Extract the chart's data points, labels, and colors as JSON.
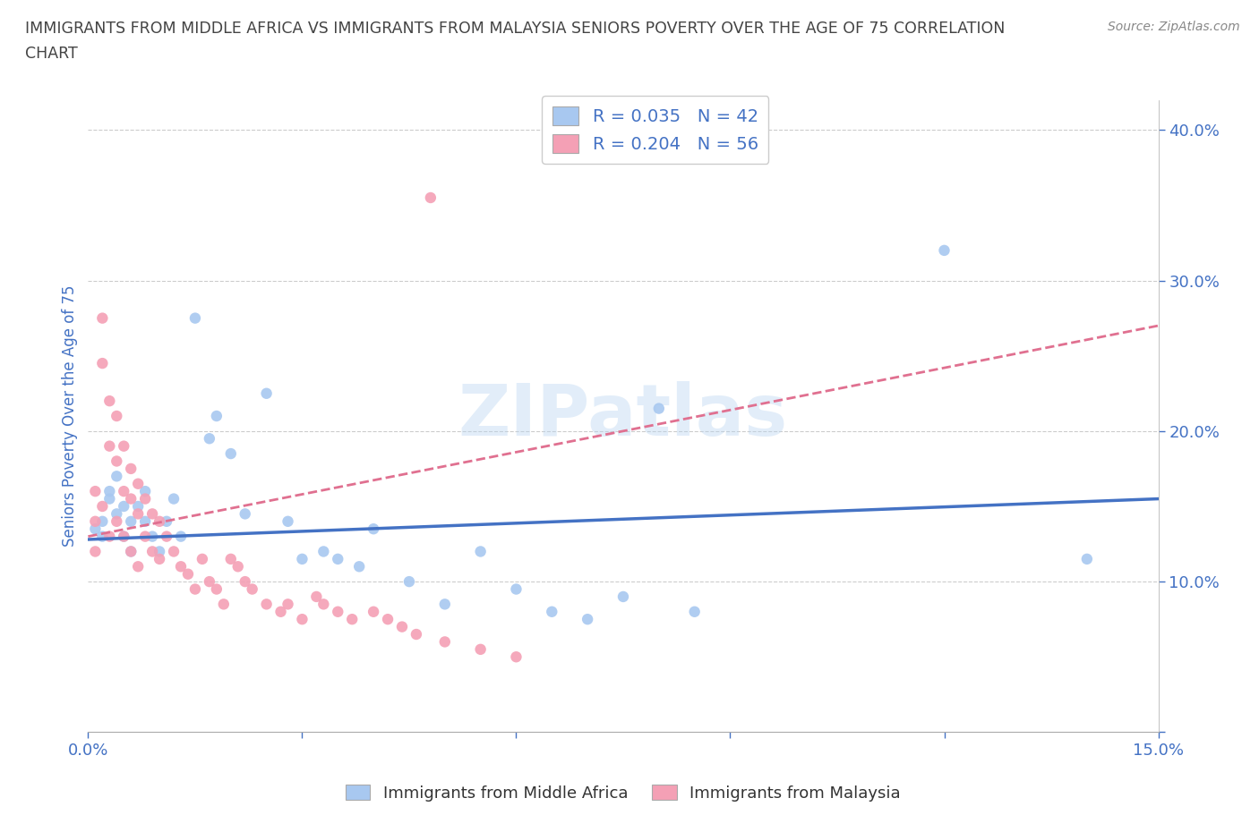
{
  "title_line1": "IMMIGRANTS FROM MIDDLE AFRICA VS IMMIGRANTS FROM MALAYSIA SENIORS POVERTY OVER THE AGE OF 75 CORRELATION",
  "title_line2": "CHART",
  "source": "Source: ZipAtlas.com",
  "ylabel": "Seniors Poverty Over the Age of 75",
  "xlim": [
    0.0,
    0.15
  ],
  "ylim": [
    0.0,
    0.42
  ],
  "legend_labels": [
    "Immigrants from Middle Africa",
    "Immigrants from Malaysia"
  ],
  "blue_scatter_color": "#a8c8f0",
  "pink_scatter_color": "#f4a0b5",
  "blue_line_color": "#4472c4",
  "pink_line_color": "#e07090",
  "watermark": "ZIPatlas",
  "blue_x": [
    0.001,
    0.002,
    0.002,
    0.003,
    0.003,
    0.004,
    0.004,
    0.005,
    0.005,
    0.006,
    0.006,
    0.007,
    0.008,
    0.008,
    0.009,
    0.01,
    0.011,
    0.012,
    0.013,
    0.015,
    0.017,
    0.018,
    0.02,
    0.022,
    0.025,
    0.028,
    0.03,
    0.033,
    0.035,
    0.038,
    0.04,
    0.045,
    0.05,
    0.055,
    0.06,
    0.065,
    0.07,
    0.075,
    0.08,
    0.085,
    0.12,
    0.14
  ],
  "blue_y": [
    0.135,
    0.14,
    0.13,
    0.155,
    0.16,
    0.145,
    0.17,
    0.15,
    0.13,
    0.14,
    0.12,
    0.15,
    0.16,
    0.14,
    0.13,
    0.12,
    0.14,
    0.155,
    0.13,
    0.275,
    0.195,
    0.21,
    0.185,
    0.145,
    0.225,
    0.14,
    0.115,
    0.12,
    0.115,
    0.11,
    0.135,
    0.1,
    0.085,
    0.12,
    0.095,
    0.08,
    0.075,
    0.09,
    0.215,
    0.08,
    0.32,
    0.115
  ],
  "pink_x": [
    0.001,
    0.001,
    0.001,
    0.002,
    0.002,
    0.002,
    0.003,
    0.003,
    0.003,
    0.004,
    0.004,
    0.004,
    0.005,
    0.005,
    0.005,
    0.006,
    0.006,
    0.006,
    0.007,
    0.007,
    0.007,
    0.008,
    0.008,
    0.009,
    0.009,
    0.01,
    0.01,
    0.011,
    0.012,
    0.013,
    0.014,
    0.015,
    0.016,
    0.017,
    0.018,
    0.019,
    0.02,
    0.021,
    0.022,
    0.023,
    0.025,
    0.027,
    0.028,
    0.03,
    0.032,
    0.033,
    0.035,
    0.037,
    0.04,
    0.042,
    0.044,
    0.046,
    0.048,
    0.05,
    0.055,
    0.06
  ],
  "pink_y": [
    0.16,
    0.14,
    0.12,
    0.275,
    0.245,
    0.15,
    0.22,
    0.19,
    0.13,
    0.21,
    0.18,
    0.14,
    0.19,
    0.16,
    0.13,
    0.175,
    0.155,
    0.12,
    0.165,
    0.145,
    0.11,
    0.155,
    0.13,
    0.145,
    0.12,
    0.14,
    0.115,
    0.13,
    0.12,
    0.11,
    0.105,
    0.095,
    0.115,
    0.1,
    0.095,
    0.085,
    0.115,
    0.11,
    0.1,
    0.095,
    0.085,
    0.08,
    0.085,
    0.075,
    0.09,
    0.085,
    0.08,
    0.075,
    0.08,
    0.075,
    0.07,
    0.065,
    0.355,
    0.06,
    0.055,
    0.05
  ],
  "grid_color": "#cccccc",
  "bg_color": "#ffffff",
  "title_color": "#444444",
  "tick_label_color": "#4472c4"
}
